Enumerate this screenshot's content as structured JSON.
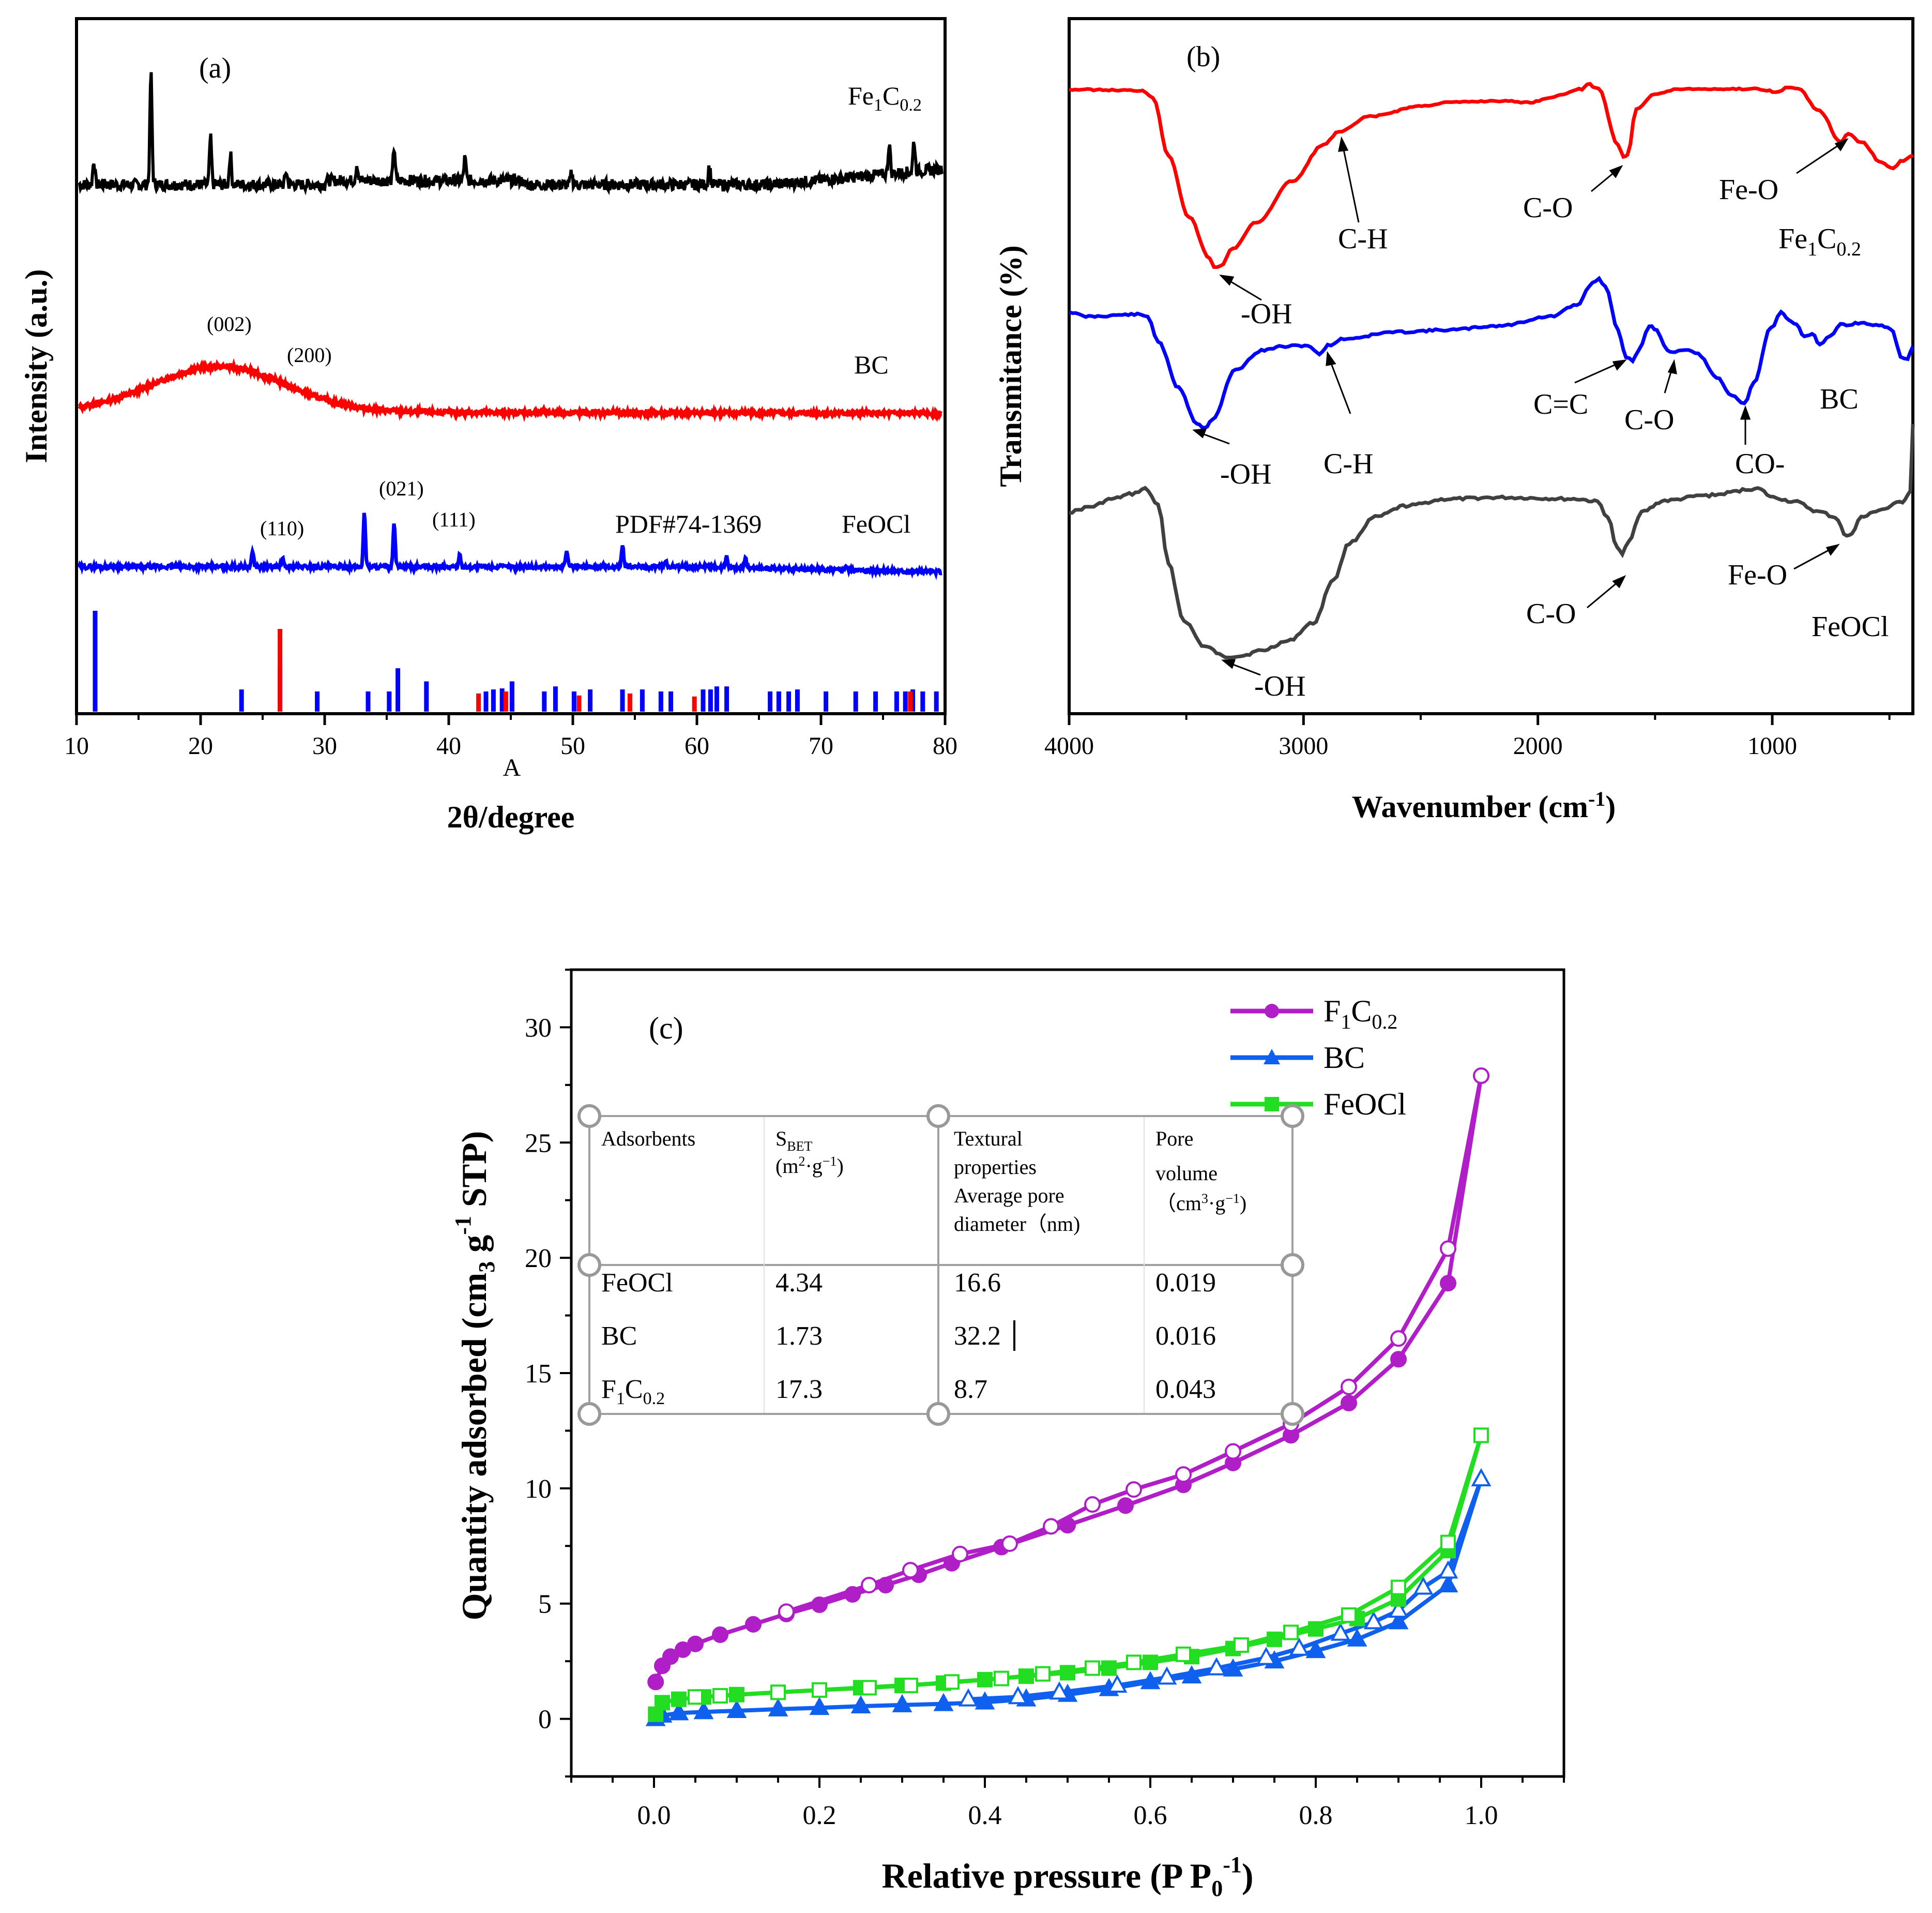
{
  "chart_data": [
    {
      "type": "line",
      "panel": "(a)",
      "xlabel": "2θ/degree",
      "ylabel": "Intensity (a.u.)",
      "xlim": [
        10,
        80
      ],
      "xticks": [
        "10",
        "20",
        "30",
        "40",
        "50",
        "60",
        "70",
        "80"
      ],
      "stray_label": "A",
      "series": [
        {
          "name": "Fe1C0.2",
          "label_main": "Fe",
          "label_sub1": "1",
          "label_mid": "C",
          "label_sub2": "0.2",
          "color": "#000000",
          "peaks": [
            [
              11.4,
              0.22
            ],
            [
              16,
              1.0
            ],
            [
              20.8,
              0.42
            ],
            [
              22.4,
              0.28
            ],
            [
              26.9,
              0.12
            ],
            [
              32.6,
              0.15
            ],
            [
              35.6,
              0.3
            ],
            [
              41.3,
              0.2
            ],
            [
              49.9,
              0.1
            ],
            [
              61,
              0.17
            ],
            [
              75.5,
              0.28
            ],
            [
              77.5,
              0.28
            ]
          ]
        },
        {
          "name": "BC",
          "label": "BC",
          "color": "#ff0000",
          "annotations": [
            {
              "text": "(002)",
              "x": 21.5
            },
            {
              "text": "(200)",
              "x": 29
            }
          ]
        },
        {
          "name": "FeOCl",
          "label": "FeOCl",
          "color": "#0000ff",
          "annotations": [
            {
              "text": "(110)",
              "x": 27
            },
            {
              "text": "(021)",
              "x": 36.6
            },
            {
              "text": "(111)",
              "x": 41
            },
            {
              "text": "PDF#74-1369",
              "x": 56
            }
          ],
          "peaks": [
            [
              24.2,
              0.16
            ],
            [
              26.6,
              0.08
            ],
            [
              33.2,
              0.55
            ],
            [
              35.6,
              0.44
            ],
            [
              40.9,
              0.12
            ],
            [
              49.5,
              0.18
            ],
            [
              54,
              0.22
            ],
            [
              57.5,
              0.06
            ],
            [
              62.4,
              0.12
            ],
            [
              63.9,
              0.11
            ],
            [
              72,
              0.05
            ]
          ]
        }
      ],
      "reference_bars_blue": [
        [
          11.5,
          1.0
        ],
        [
          23.3,
          0.22
        ],
        [
          26.4,
          0.45
        ],
        [
          29.4,
          0.2
        ],
        [
          33.5,
          0.2
        ],
        [
          35.2,
          0.2
        ],
        [
          35.9,
          0.43
        ],
        [
          38.2,
          0.3
        ],
        [
          43,
          0.2
        ],
        [
          43.6,
          0.22
        ],
        [
          44.3,
          0.23
        ],
        [
          45.1,
          0.3
        ],
        [
          47.7,
          0.2
        ],
        [
          48.6,
          0.25
        ],
        [
          50.1,
          0.2
        ],
        [
          51.4,
          0.22
        ],
        [
          54,
          0.22
        ],
        [
          55.6,
          0.22
        ],
        [
          57.1,
          0.2
        ],
        [
          57.9,
          0.2
        ],
        [
          60.5,
          0.22
        ],
        [
          61.1,
          0.22
        ],
        [
          61.6,
          0.25
        ],
        [
          62.4,
          0.25
        ],
        [
          65.9,
          0.2
        ],
        [
          66.6,
          0.2
        ],
        [
          67.4,
          0.2
        ],
        [
          68.1,
          0.22
        ],
        [
          70.4,
          0.2
        ],
        [
          72.8,
          0.2
        ],
        [
          74.4,
          0.2
        ],
        [
          76.1,
          0.2
        ],
        [
          76.8,
          0.2
        ],
        [
          77.4,
          0.22
        ],
        [
          78.2,
          0.2
        ],
        [
          79.3,
          0.2
        ]
      ],
      "reference_bars_red": [
        [
          26.4,
          0.82
        ],
        [
          42.4,
          0.18
        ],
        [
          44.6,
          0.2
        ],
        [
          50.5,
          0.16
        ],
        [
          54.6,
          0.18
        ],
        [
          59.8,
          0.15
        ],
        [
          77.2,
          0.2
        ]
      ]
    },
    {
      "type": "line",
      "panel": "(b)",
      "xlabel_main": "Wavenumber (cm",
      "xlabel_sup": "-1",
      "xlabel_end": ")",
      "ylabel": "Transmitance (%)",
      "xlim": [
        4000,
        400
      ],
      "xticks": [
        "4000",
        "3000",
        "2000",
        "1000"
      ],
      "series": [
        {
          "name": "Fe1C0.2",
          "label_main": "Fe",
          "label_sub1": "1",
          "label_mid": "C",
          "label_sub2": "0.2",
          "color": "#ff0000",
          "annotations": [
            "-OH",
            "C-H",
            "C-O",
            "Fe-O"
          ]
        },
        {
          "name": "BC",
          "label": "BC",
          "color": "#0000ff",
          "annotations": [
            "-OH",
            "C-H",
            "C=C",
            "C-O",
            "CO-"
          ]
        },
        {
          "name": "FeOCl",
          "label": "FeOCl",
          "color": "#404040",
          "annotations": [
            "-OH",
            "C-O",
            "Fe-O"
          ]
        }
      ]
    },
    {
      "type": "line",
      "panel": "(c)",
      "xlabel_main": "Relative pressure (P P",
      "xlabel_sub": "0",
      "xlabel_sup": "-1",
      "xlabel_end": ")",
      "ylabel_main": "Quantity adsorbed (cm",
      "ylabel_sub": "3",
      "ylabel_mid": " g",
      "ylabel_sup": "-1",
      "ylabel_end": " STP)",
      "xlim": [
        -0.1,
        1.1
      ],
      "ylim": [
        -2.5,
        32.5
      ],
      "xticks": [
        "0.0",
        "0.2",
        "0.4",
        "0.6",
        "0.8",
        "1.0"
      ],
      "yticks": [
        "0",
        "5",
        "10",
        "15",
        "20",
        "25",
        "30"
      ],
      "series": [
        {
          "name": "F1C0.2",
          "legend_main": "F",
          "legend_sub1": "1",
          "legend_mid": "C",
          "legend_sub2": "0.2",
          "color": "#b01ec8",
          "marker": "circle",
          "adsorption": [
            [
              0.002,
              1.6
            ],
            [
              0.01,
              2.3
            ],
            [
              0.02,
              2.7
            ],
            [
              0.035,
              3.0
            ],
            [
              0.05,
              3.25
            ],
            [
              0.08,
              3.65
            ],
            [
              0.12,
              4.1
            ],
            [
              0.16,
              4.55
            ],
            [
              0.2,
              4.95
            ],
            [
              0.24,
              5.4
            ],
            [
              0.28,
              5.8
            ],
            [
              0.32,
              6.25
            ],
            [
              0.36,
              6.75
            ],
            [
              0.42,
              7.45
            ],
            [
              0.5,
              8.4
            ],
            [
              0.57,
              9.25
            ],
            [
              0.64,
              10.15
            ],
            [
              0.7,
              11.1
            ],
            [
              0.77,
              12.3
            ],
            [
              0.84,
              13.7
            ],
            [
              0.9,
              15.6
            ],
            [
              0.96,
              18.9
            ],
            [
              1.0,
              27.9
            ]
          ],
          "desorption": [
            [
              1.0,
              27.9
            ],
            [
              0.96,
              20.4
            ],
            [
              0.9,
              16.5
            ],
            [
              0.84,
              14.4
            ],
            [
              0.77,
              12.8
            ],
            [
              0.7,
              11.6
            ],
            [
              0.64,
              10.6
            ],
            [
              0.58,
              9.95
            ],
            [
              0.53,
              9.3
            ],
            [
              0.48,
              8.35
            ],
            [
              0.43,
              7.6
            ],
            [
              0.37,
              7.15
            ],
            [
              0.31,
              6.45
            ],
            [
              0.26,
              5.8
            ],
            [
              0.16,
              4.65
            ]
          ]
        },
        {
          "name": "BC",
          "legend": "BC",
          "color": "#1060f0",
          "marker": "triangle",
          "adsorption": [
            [
              0.002,
              0.0
            ],
            [
              0.01,
              0.15
            ],
            [
              0.03,
              0.25
            ],
            [
              0.06,
              0.3
            ],
            [
              0.1,
              0.35
            ],
            [
              0.15,
              0.42
            ],
            [
              0.2,
              0.48
            ],
            [
              0.25,
              0.55
            ],
            [
              0.3,
              0.6
            ],
            [
              0.35,
              0.65
            ],
            [
              0.4,
              0.72
            ],
            [
              0.45,
              0.85
            ],
            [
              0.5,
              1.05
            ],
            [
              0.55,
              1.3
            ],
            [
              0.6,
              1.6
            ],
            [
              0.65,
              1.85
            ],
            [
              0.7,
              2.15
            ],
            [
              0.75,
              2.5
            ],
            [
              0.8,
              2.95
            ],
            [
              0.85,
              3.45
            ],
            [
              0.9,
              4.2
            ],
            [
              0.96,
              5.8
            ],
            [
              1.0,
              10.4
            ]
          ],
          "desorption": [
            [
              1.0,
              10.4
            ],
            [
              0.96,
              6.4
            ],
            [
              0.93,
              5.7
            ],
            [
              0.9,
              4.7
            ],
            [
              0.87,
              4.2
            ],
            [
              0.83,
              3.7
            ],
            [
              0.78,
              3.05
            ],
            [
              0.74,
              2.65
            ],
            [
              0.68,
              2.2
            ],
            [
              0.62,
              1.8
            ],
            [
              0.56,
              1.45
            ],
            [
              0.49,
              1.15
            ],
            [
              0.44,
              0.95
            ],
            [
              0.38,
              0.85
            ]
          ]
        },
        {
          "name": "FeOCl",
          "legend": "FeOCl",
          "color": "#22dd22",
          "marker": "square",
          "adsorption": [
            [
              0.002,
              0.2
            ],
            [
              0.01,
              0.7
            ],
            [
              0.03,
              0.85
            ],
            [
              0.06,
              0.95
            ],
            [
              0.1,
              1.05
            ],
            [
              0.15,
              1.15
            ],
            [
              0.2,
              1.25
            ],
            [
              0.25,
              1.35
            ],
            [
              0.3,
              1.45
            ],
            [
              0.35,
              1.55
            ],
            [
              0.4,
              1.7
            ],
            [
              0.45,
              1.85
            ],
            [
              0.5,
              2.0
            ],
            [
              0.55,
              2.2
            ],
            [
              0.6,
              2.45
            ],
            [
              0.65,
              2.7
            ],
            [
              0.7,
              3.05
            ],
            [
              0.75,
              3.45
            ],
            [
              0.8,
              3.9
            ],
            [
              0.85,
              4.35
            ],
            [
              0.9,
              5.2
            ],
            [
              0.96,
              7.3
            ],
            [
              1.0,
              12.3
            ]
          ],
          "desorption": [
            [
              1.0,
              12.3
            ],
            [
              0.96,
              7.65
            ],
            [
              0.9,
              5.7
            ],
            [
              0.84,
              4.5
            ],
            [
              0.77,
              3.75
            ],
            [
              0.71,
              3.2
            ],
            [
              0.64,
              2.8
            ],
            [
              0.58,
              2.45
            ],
            [
              0.53,
              2.2
            ],
            [
              0.47,
              1.95
            ],
            [
              0.42,
              1.75
            ],
            [
              0.36,
              1.6
            ],
            [
              0.31,
              1.45
            ],
            [
              0.26,
              1.35
            ],
            [
              0.2,
              1.25
            ],
            [
              0.15,
              1.15
            ],
            [
              0.08,
              1.0
            ],
            [
              0.05,
              0.95
            ]
          ]
        }
      ],
      "inset_table": {
        "headers": [
          {
            "text": "Adsorbents"
          },
          {
            "main": "S",
            "sub": "BET",
            "line2a": "(m",
            "sup2": "2",
            "line2b": "·g",
            "sup3": "−1",
            "line2c": ")"
          },
          {
            "l1": "Textural",
            "l2": "properties",
            "l3": "Average pore",
            "l4": "diameter（nm)"
          },
          {
            "l1": "Pore",
            "l2": "volume",
            "l3a": "（cm",
            "sup": "3",
            "l3b": "·g",
            "sup2": "−1",
            "l3c": ")"
          }
        ],
        "rows": [
          [
            "FeOCl",
            "4.34",
            "16.6",
            "0.019"
          ],
          [
            "BC",
            "1.73",
            "32.2",
            "0.016"
          ],
          [
            {
              "main": "F",
              "sub1": "1",
              "mid": "C",
              "sub2": "0.2"
            },
            "17.3",
            "8.7",
            "0.043"
          ]
        ]
      }
    }
  ]
}
